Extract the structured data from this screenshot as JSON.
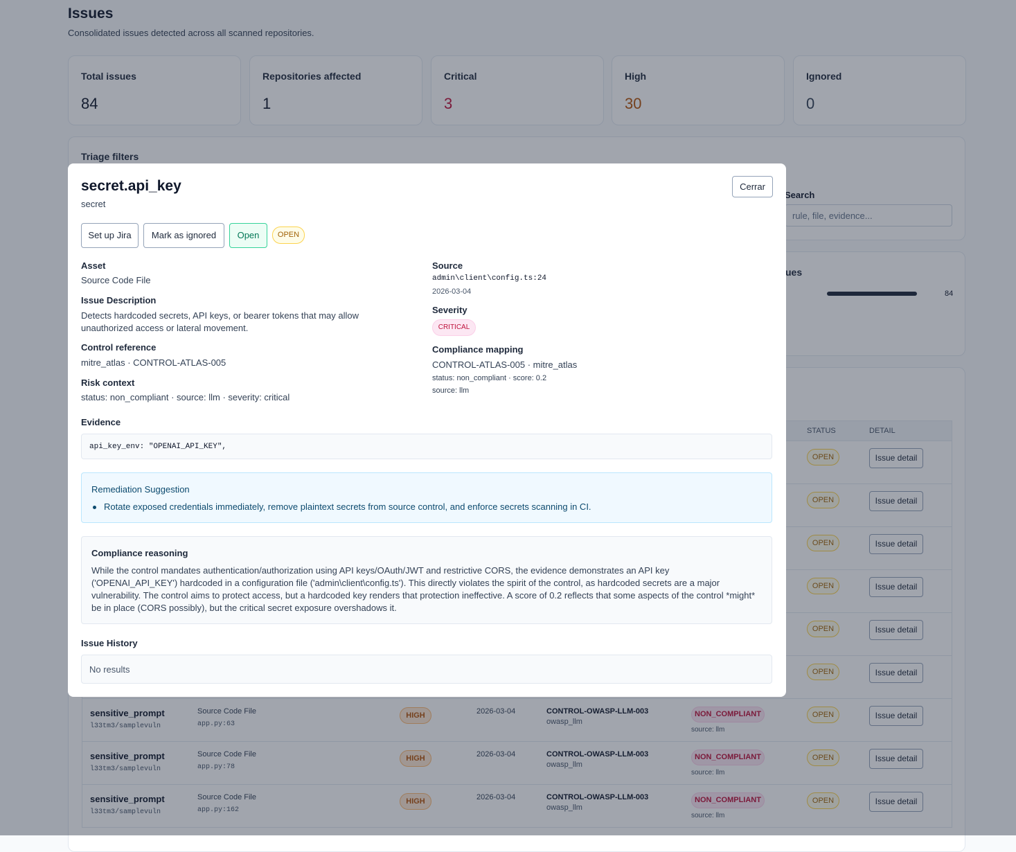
{
  "header": {
    "title": "Issues",
    "subtitle": "Consolidated issues detected across all scanned repositories."
  },
  "stats": [
    {
      "label": "Total issues",
      "value": 84
    },
    {
      "label": "Repositories affected",
      "value": 1
    },
    {
      "label": "Critical",
      "value": 3
    },
    {
      "label": "High",
      "value": 30
    },
    {
      "label": "Ignored",
      "value": 0
    }
  ],
  "filters": {
    "title": "Triage filters",
    "search_label": "Search",
    "search_placeholder": "rule, file, evidence..."
  },
  "summary": {
    "title": "ues",
    "count": 84
  },
  "table": {
    "headers": {
      "status": "STATUS",
      "detail": "DETAIL"
    },
    "rows": [
      {
        "status": "OPEN",
        "action": "Issue detail"
      },
      {
        "status": "OPEN",
        "action": "Issue detail"
      },
      {
        "status": "OPEN",
        "action": "Issue detail"
      },
      {
        "status": "OPEN",
        "action": "Issue detail"
      },
      {
        "status": "OPEN",
        "action": "Issue detail"
      },
      {
        "status": "OPEN",
        "action": "Issue detail"
      },
      {
        "rule": "sensitive_prompt",
        "repo": "l33tm3/samplevuln",
        "asset": "Source Code File",
        "location": "app.py:63",
        "severity": "HIGH",
        "date": "2026-03-04",
        "control": "CONTROL-OWASP-LLM-003",
        "framework": "owasp_llm",
        "compliance": "NON_COMPLIANT",
        "source": "source: llm",
        "status": "OPEN",
        "action": "Issue detail"
      },
      {
        "rule": "sensitive_prompt",
        "repo": "l33tm3/samplevuln",
        "asset": "Source Code File",
        "location": "app.py:78",
        "severity": "HIGH",
        "date": "2026-03-04",
        "control": "CONTROL-OWASP-LLM-003",
        "framework": "owasp_llm",
        "compliance": "NON_COMPLIANT",
        "source": "source: llm",
        "status": "OPEN",
        "action": "Issue detail"
      },
      {
        "rule": "sensitive_prompt",
        "repo": "l33tm3/samplevuln",
        "asset": "Source Code File",
        "location": "app.py:162",
        "severity": "HIGH",
        "date": "2026-03-04",
        "control": "CONTROL-OWASP-LLM-003",
        "framework": "owasp_llm",
        "compliance": "NON_COMPLIANT",
        "source": "source: llm",
        "status": "OPEN",
        "action": "Issue detail"
      }
    ]
  },
  "modal": {
    "title": "secret.api_key",
    "subtitle": "secret",
    "close": "Cerrar",
    "buttons": {
      "jira": "Set up Jira",
      "ignore": "Mark as ignored",
      "open": "Open"
    },
    "status_badge": "OPEN",
    "asset": {
      "label": "Asset",
      "value": "Source Code File"
    },
    "description": {
      "label": "Issue Description",
      "value": "Detects hardcoded secrets, API keys, or bearer tokens that may allow unauthorized access or lateral movement."
    },
    "control_reference": {
      "label": "Control reference",
      "value": "mitre_atlas · CONTROL-ATLAS-005"
    },
    "risk_context": {
      "label": "Risk context",
      "value": "status: non_compliant · source: llm · severity: critical"
    },
    "source": {
      "label": "Source",
      "path": "admin\\client\\config.ts:24",
      "date": "2026-03-04"
    },
    "severity": {
      "label": "Severity",
      "value": "CRITICAL"
    },
    "compliance_mapping": {
      "label": "Compliance mapping",
      "value": "CONTROL-ATLAS-005 · mitre_atlas",
      "status": "status: non_compliant · score: 0.2",
      "source": "source: llm"
    },
    "evidence": {
      "label": "Evidence",
      "code": "api_key_env: \"OPENAI_API_KEY\","
    },
    "remediation": {
      "title": "Remediation Suggestion",
      "items": [
        "Rotate exposed credentials immediately, remove plaintext secrets from source control, and enforce secrets scanning in CI."
      ]
    },
    "reasoning": {
      "title": "Compliance reasoning",
      "text": "While the control mandates authentication/authorization using API keys/OAuth/JWT and restrictive CORS, the evidence demonstrates an API key ('OPENAI_API_KEY') hardcoded in a configuration file ('admin\\client\\config.ts'). This directly violates the spirit of the control, as hardcoded secrets are a major vulnerability. The control aims to protect access, but a hardcoded key renders that protection ineffective. A score of 0.2 reflects that some aspects of the control *might* be in place (CORS possibly), but the critical secret exposure overshadows it."
    },
    "history": {
      "label": "Issue History",
      "empty": "No results"
    }
  }
}
